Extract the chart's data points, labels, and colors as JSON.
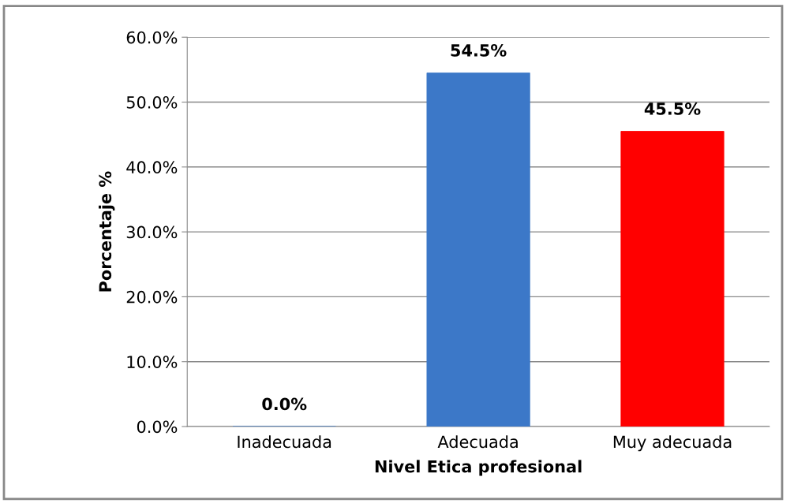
{
  "chart_data": {
    "type": "bar",
    "xlabel": "Nivel Etica profesional",
    "ylabel": "Porcentaje %",
    "categories": [
      "Inadecuada",
      "Adecuada",
      "Muy adecuada"
    ],
    "values": [
      0.0,
      54.5,
      45.5
    ],
    "colors": [
      "#3c78c8",
      "#3c78c8",
      "#ff0000"
    ],
    "value_labels": [
      "0.0%",
      "54.5%",
      "45.5%"
    ],
    "ylim": [
      0,
      60
    ],
    "yticks": [
      {
        "value": 0,
        "label": "0.0%"
      },
      {
        "value": 10,
        "label": "10.0%"
      },
      {
        "value": 20,
        "label": "20.0%"
      },
      {
        "value": 30,
        "label": "30.0%"
      },
      {
        "value": 40,
        "label": "40.0%"
      },
      {
        "value": 50,
        "label": "50.0%"
      },
      {
        "value": 60,
        "label": "60.0%"
      }
    ],
    "grid": "y",
    "legend": false
  }
}
